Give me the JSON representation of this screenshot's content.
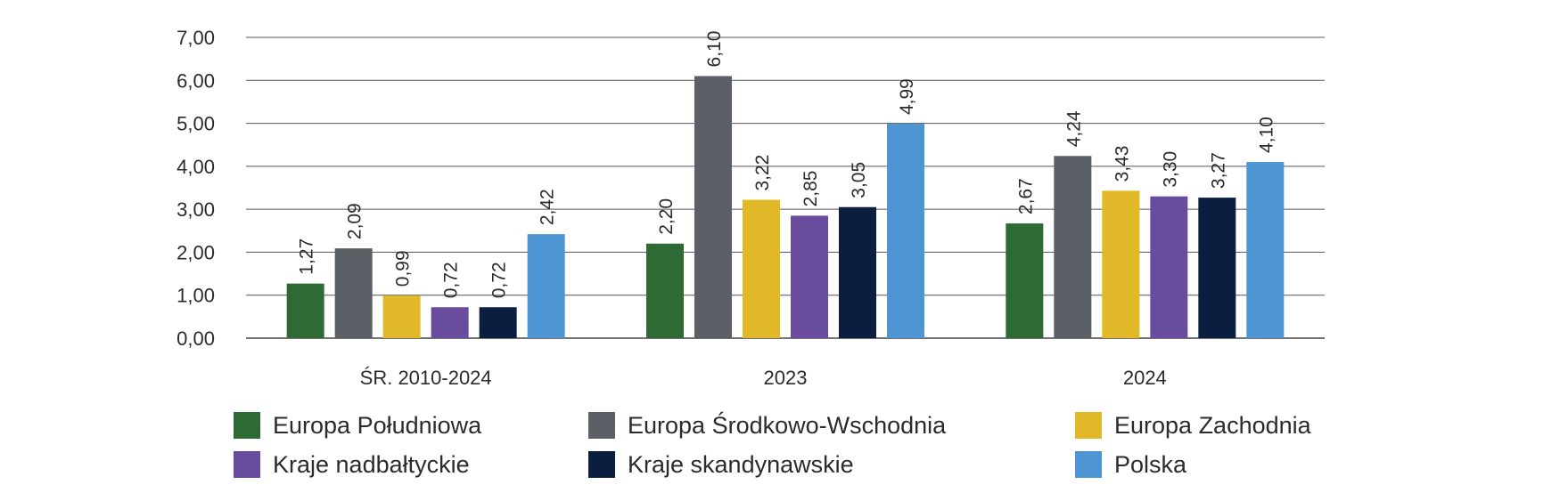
{
  "chart_data": {
    "type": "bar",
    "categories": [
      "ŚR. 2010-2024",
      "2023",
      "2024"
    ],
    "series": [
      {
        "name": "Europa Południowa",
        "color": "#2e6b34",
        "values": [
          1.27,
          2.2,
          2.67
        ],
        "labels": [
          "1,27",
          "2,20",
          "2,67"
        ]
      },
      {
        "name": "Europa Środkowo-Wschodnia",
        "color": "#5b5f66",
        "values": [
          2.09,
          6.1,
          4.24
        ],
        "labels": [
          "2,09",
          "6,10",
          "4,24"
        ]
      },
      {
        "name": "Europa Zachodnia",
        "color": "#e0b828",
        "values": [
          0.99,
          3.22,
          3.43
        ],
        "labels": [
          "0,99",
          "3,22",
          "3,43"
        ]
      },
      {
        "name": "Kraje nadbałtyckie",
        "color": "#6a4c9f",
        "values": [
          0.72,
          2.85,
          3.3
        ],
        "labels": [
          "0,72",
          "2,85",
          "3,30"
        ]
      },
      {
        "name": "Kraje skandynawskie",
        "color": "#0c1e3f",
        "values": [
          0.72,
          3.05,
          3.27
        ],
        "labels": [
          "0,72",
          "3,05",
          "3,27"
        ]
      },
      {
        "name": "Polska",
        "color": "#4d95d3",
        "values": [
          2.42,
          4.99,
          4.1
        ],
        "labels": [
          "2,42",
          "4,99",
          "4,10"
        ]
      }
    ],
    "yticks": [
      "0,00",
      "1,00",
      "2,00",
      "3,00",
      "4,00",
      "5,00",
      "6,00",
      "7,00"
    ],
    "ylim": [
      0,
      7
    ],
    "grid": true,
    "legend_position": "bottom"
  }
}
